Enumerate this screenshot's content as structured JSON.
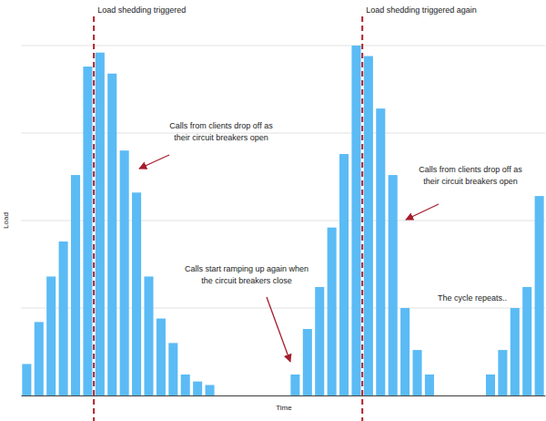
{
  "chart_data": {
    "type": "bar",
    "x_label": "Time",
    "y_label": "Load",
    "categories": [
      null,
      null,
      null,
      null,
      null,
      null,
      null,
      null,
      null,
      null,
      null,
      null,
      null,
      null,
      null,
      null,
      null,
      null,
      null,
      null,
      null,
      null,
      null,
      null,
      null,
      null,
      null,
      null,
      null,
      null,
      null,
      null,
      null,
      null,
      null,
      null,
      null,
      null,
      null,
      null,
      null,
      null,
      null
    ],
    "values": [
      9,
      21,
      34,
      44,
      63,
      94,
      98,
      92,
      70,
      58,
      34,
      22,
      15,
      6,
      4,
      3,
      0,
      0,
      0,
      0,
      0,
      0,
      6,
      19,
      31,
      48,
      69,
      100,
      97,
      82,
      63,
      25,
      13,
      6,
      0,
      0,
      0,
      0,
      6,
      13,
      25,
      31,
      57
    ],
    "color": "#5bbbf5",
    "ylim": [
      0,
      100
    ],
    "yticks": [
      0,
      25,
      50,
      75,
      100
    ],
    "grid": true,
    "tick_labels": false,
    "vlines": [
      {
        "x": 5.5,
        "label": "Load shedding triggered",
        "color": "#b0222c"
      },
      {
        "x": 27.5,
        "label": "Load shedding triggered again",
        "color": "#b0222c"
      }
    ],
    "annotations": [
      {
        "lines": [
          "Calls from clients drop off as",
          "their circuit breakers open"
        ]
      },
      {
        "lines": [
          "Calls from clients drop off as",
          "their circuit breakers open"
        ]
      },
      {
        "lines": [
          "Calls start ramping up again when",
          "the circuit breakers close"
        ]
      },
      {
        "lines": [
          "The cycle repeats.."
        ]
      }
    ]
  }
}
